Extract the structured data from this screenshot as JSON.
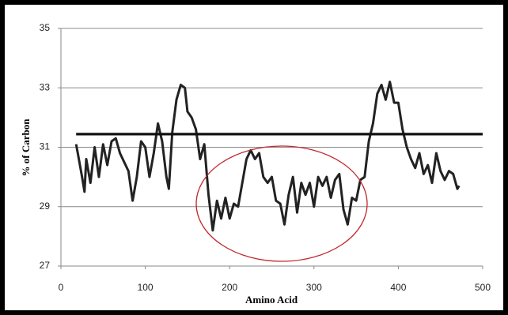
{
  "chart_data": {
    "type": "line",
    "xlabel": "Amino Acid",
    "ylabel": "% of Carbon",
    "xlim": [
      0,
      500
    ],
    "xticks": [
      0,
      100,
      200,
      300,
      400,
      500
    ],
    "ylim": [
      27,
      35
    ],
    "yticks": [
      27,
      29,
      31,
      33,
      35
    ],
    "grid": true,
    "series": [
      {
        "color": "#222222",
        "x": [
          18,
          20,
          25,
          28,
          30,
          35,
          40,
          45,
          50,
          55,
          60,
          65,
          70,
          75,
          80,
          85,
          90,
          95,
          100,
          105,
          110,
          115,
          120,
          125,
          128,
          132,
          137,
          142,
          147,
          150,
          155,
          160,
          165,
          170,
          175,
          180,
          185,
          190,
          195,
          200,
          205,
          210,
          215,
          220,
          225,
          230,
          235,
          240,
          245,
          250,
          255,
          260,
          265,
          270,
          275,
          280,
          285,
          290,
          295,
          300,
          305,
          310,
          315,
          320,
          325,
          330,
          335,
          340,
          345,
          350,
          355,
          360,
          365,
          370,
          375,
          380,
          385,
          390,
          395,
          400,
          405,
          410,
          415,
          420,
          425,
          430,
          435,
          440,
          445,
          450,
          455,
          460,
          465,
          470,
          472
        ],
        "values": [
          31.1,
          30.8,
          30.0,
          29.5,
          30.6,
          29.8,
          31.0,
          30.0,
          31.1,
          30.4,
          31.2,
          31.3,
          30.8,
          30.5,
          30.2,
          29.2,
          30.0,
          31.2,
          31.0,
          30.0,
          30.8,
          31.8,
          31.2,
          30.0,
          29.6,
          31.5,
          32.6,
          33.1,
          33.0,
          32.2,
          32.0,
          31.6,
          30.6,
          31.1,
          29.4,
          28.2,
          29.2,
          28.6,
          29.3,
          28.6,
          29.1,
          29.0,
          29.8,
          30.6,
          30.9,
          30.6,
          30.8,
          30.0,
          29.8,
          30.0,
          29.2,
          29.1,
          28.4,
          29.4,
          30.0,
          28.8,
          29.8,
          29.4,
          29.8,
          29.0,
          30.0,
          29.7,
          30.0,
          29.3,
          29.9,
          30.1,
          28.9,
          28.4,
          29.3,
          29.2,
          29.9,
          30.0,
          31.2,
          31.8,
          32.8,
          33.1,
          32.6,
          33.2,
          32.5,
          32.5,
          31.6,
          31.0,
          30.6,
          30.3,
          30.8,
          30.1,
          30.4,
          29.8,
          30.8,
          30.2,
          29.9,
          30.2,
          30.1,
          29.6,
          29.7
        ]
      },
      {
        "color": "#111111",
        "x": [
          18,
          500
        ],
        "values": [
          31.44,
          31.44
        ]
      }
    ]
  }
}
